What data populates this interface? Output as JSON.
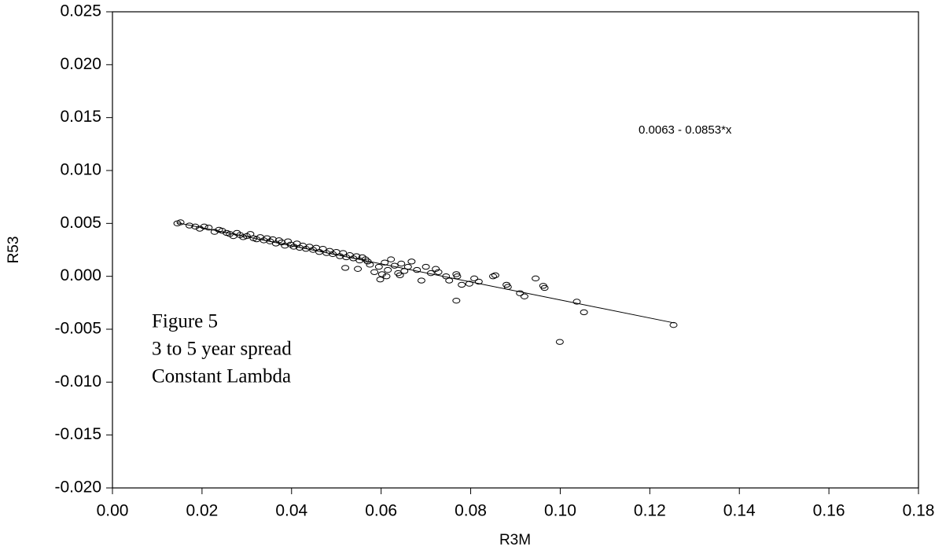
{
  "chart_data": {
    "type": "scatter",
    "xlabel": "R3M",
    "ylabel": "R53",
    "annotation": "0.0063 - 0.0853*x",
    "caption": [
      "Figure 5",
      "3 to 5 year spread",
      "Constant Lambda"
    ],
    "xlim": [
      0,
      0.18
    ],
    "xticks": [
      {
        "value": 0,
        "label": "0.00"
      },
      0.02,
      0.04,
      0.06,
      0.08,
      {
        "value": 0.1,
        "label": "0.10"
      },
      0.12,
      0.14,
      0.16,
      0.18
    ],
    "ylim": [
      -0.02,
      0.025
    ],
    "yticks": [
      {
        "value": -0.02,
        "label": "-0.020"
      },
      -0.015,
      {
        "value": -0.01,
        "label": "-0.010"
      },
      -0.005,
      {
        "value": 0,
        "label": "0.000"
      },
      0.005,
      {
        "value": 0.01,
        "label": "0.010"
      },
      0.015,
      {
        "value": 0.02,
        "label": "0.020"
      },
      0.025
    ],
    "color": "#000000",
    "fit": {
      "x": [
        0.0145,
        0.1255
      ],
      "y": [
        0.00506,
        -0.00441
      ]
    },
    "x": [
      0.0145,
      0.0152,
      0.0172,
      0.0185,
      0.0195,
      0.0205,
      0.0215,
      0.0228,
      0.0238,
      0.0245,
      0.0255,
      0.0262,
      0.027,
      0.0278,
      0.0285,
      0.0292,
      0.03,
      0.0308,
      0.0315,
      0.0322,
      0.033,
      0.0338,
      0.0345,
      0.0352,
      0.0358,
      0.0365,
      0.0372,
      0.0378,
      0.0385,
      0.0392,
      0.0398,
      0.0405,
      0.0412,
      0.0418,
      0.0425,
      0.0432,
      0.044,
      0.0448,
      0.0455,
      0.0462,
      0.047,
      0.0478,
      0.0485,
      0.0492,
      0.05,
      0.0508,
      0.0515,
      0.0522,
      0.053,
      0.0538,
      0.0545,
      0.0552,
      0.0558,
      0.0565,
      0.057,
      0.052,
      0.0548,
      0.0575,
      0.0585,
      0.0595,
      0.0602,
      0.0608,
      0.0615,
      0.0622,
      0.063,
      0.0638,
      0.0645,
      0.0652,
      0.066,
      0.0668,
      0.068,
      0.069,
      0.07,
      0.0711,
      0.0722,
      0.0728,
      0.0745,
      0.0752,
      0.0768,
      0.077,
      0.0768,
      0.078,
      0.0797,
      0.0808,
      0.0818,
      0.085,
      0.0855,
      0.088,
      0.0883,
      0.091,
      0.092,
      0.0945,
      0.0962,
      0.0965,
      0.0999,
      0.1037,
      0.1053,
      0.1253,
      0.0598,
      0.0612,
      0.0642
    ],
    "y": [
      0.005,
      0.0051,
      0.0048,
      0.0047,
      0.0045,
      0.0047,
      0.0046,
      0.0042,
      0.0044,
      0.0043,
      0.0041,
      0.004,
      0.0038,
      0.0041,
      0.0039,
      0.0037,
      0.0038,
      0.004,
      0.0036,
      0.0035,
      0.0037,
      0.0034,
      0.0036,
      0.0033,
      0.0035,
      0.0031,
      0.0034,
      0.0032,
      0.0029,
      0.0033,
      0.003,
      0.0028,
      0.0031,
      0.0027,
      0.0029,
      0.0026,
      0.0028,
      0.0025,
      0.0027,
      0.0023,
      0.0026,
      0.0022,
      0.0024,
      0.0021,
      0.0023,
      0.0019,
      0.0022,
      0.0018,
      0.002,
      0.0017,
      0.0019,
      0.0015,
      0.0018,
      0.0016,
      0.0014,
      0.0008,
      0.0007,
      0.0011,
      0.0004,
      0.0009,
      0.0002,
      0.0013,
      0.0006,
      0.0016,
      0.001,
      0.0003,
      0.0012,
      0.0005,
      0.0009,
      0.0014,
      0.0006,
      -0.0004,
      0.0009,
      0.0003,
      0.0007,
      0.0004,
      0.0,
      -0.0004,
      0.0002,
      0.0,
      -0.0023,
      -0.0008,
      -0.0007,
      -0.0002,
      -0.0005,
      0.0,
      0.0001,
      -0.0008,
      -0.001,
      -0.0016,
      -0.0019,
      -0.0002,
      -0.0009,
      -0.0011,
      -0.0062,
      -0.0024,
      -0.0034,
      -0.0046,
      -0.0003,
      0.0,
      0.0001
    ]
  }
}
